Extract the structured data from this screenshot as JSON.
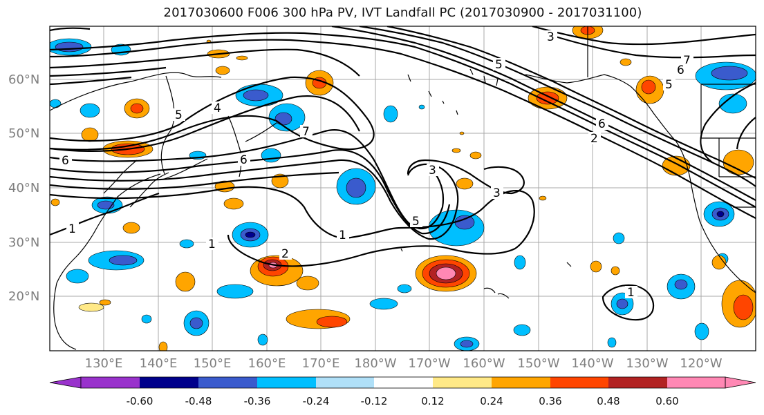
{
  "title": "2017030600 F006 300 hPa PV, IVT Landfall PC (2017030900 - 2017031100)",
  "lat_labels": [
    "60°N",
    "50°N",
    "40°N",
    "30°N",
    "20°N"
  ],
  "lon_labels": [
    "130°E",
    "140°E",
    "150°E",
    "160°E",
    "170°E",
    "180°W",
    "170°W",
    "160°W",
    "150°W",
    "140°W",
    "130°W",
    "120°W"
  ],
  "colorbar": {
    "colors": [
      "#9932cc",
      "#00008b",
      "#3a5bcd",
      "#00bfff",
      "#b0e0f8",
      "#ffffff",
      "#ffe987",
      "#ffa500",
      "#ff4500",
      "#b22222",
      "#ff88b4",
      "#ff88b4"
    ],
    "tick_labels": [
      "-0.60",
      "-0.48",
      "-0.36",
      "-0.24",
      "-0.12",
      "0.12",
      "0.24",
      "0.36",
      "0.48",
      "0.60"
    ]
  },
  "contour_labels": [
    "4",
    "5",
    "6",
    "6",
    "7",
    "1",
    "1",
    "1",
    "2",
    "3",
    "3",
    "5",
    "5",
    "6",
    "2",
    "7",
    "6",
    "5",
    "3",
    "1"
  ]
}
